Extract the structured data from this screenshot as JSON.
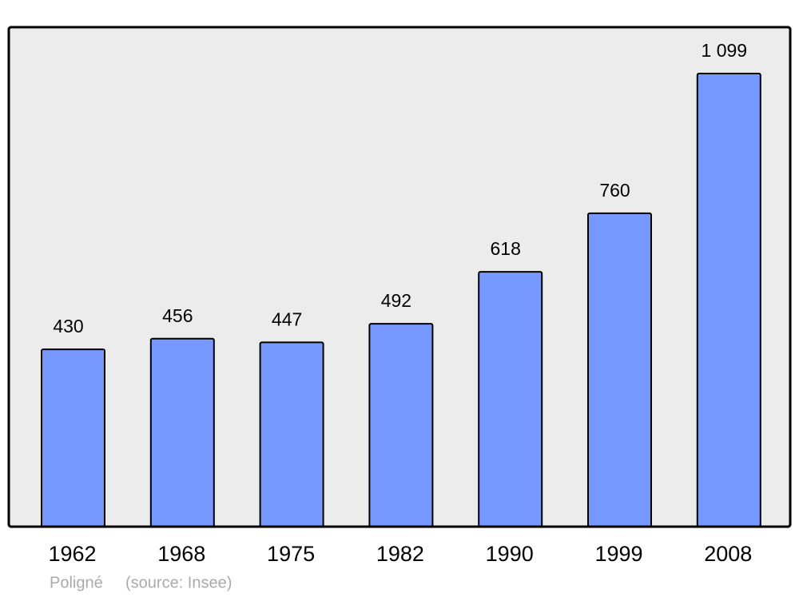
{
  "chart_data": {
    "type": "bar",
    "categories": [
      "1962",
      "1968",
      "1975",
      "1982",
      "1990",
      "1999",
      "2008"
    ],
    "values": [
      430,
      456,
      447,
      492,
      618,
      760,
      1099
    ],
    "value_labels": [
      "430",
      "456",
      "447",
      "492",
      "618",
      "760",
      "1 099"
    ],
    "color": "#7799ff",
    "caption": "Poligné",
    "source": "(source: Insee)"
  }
}
